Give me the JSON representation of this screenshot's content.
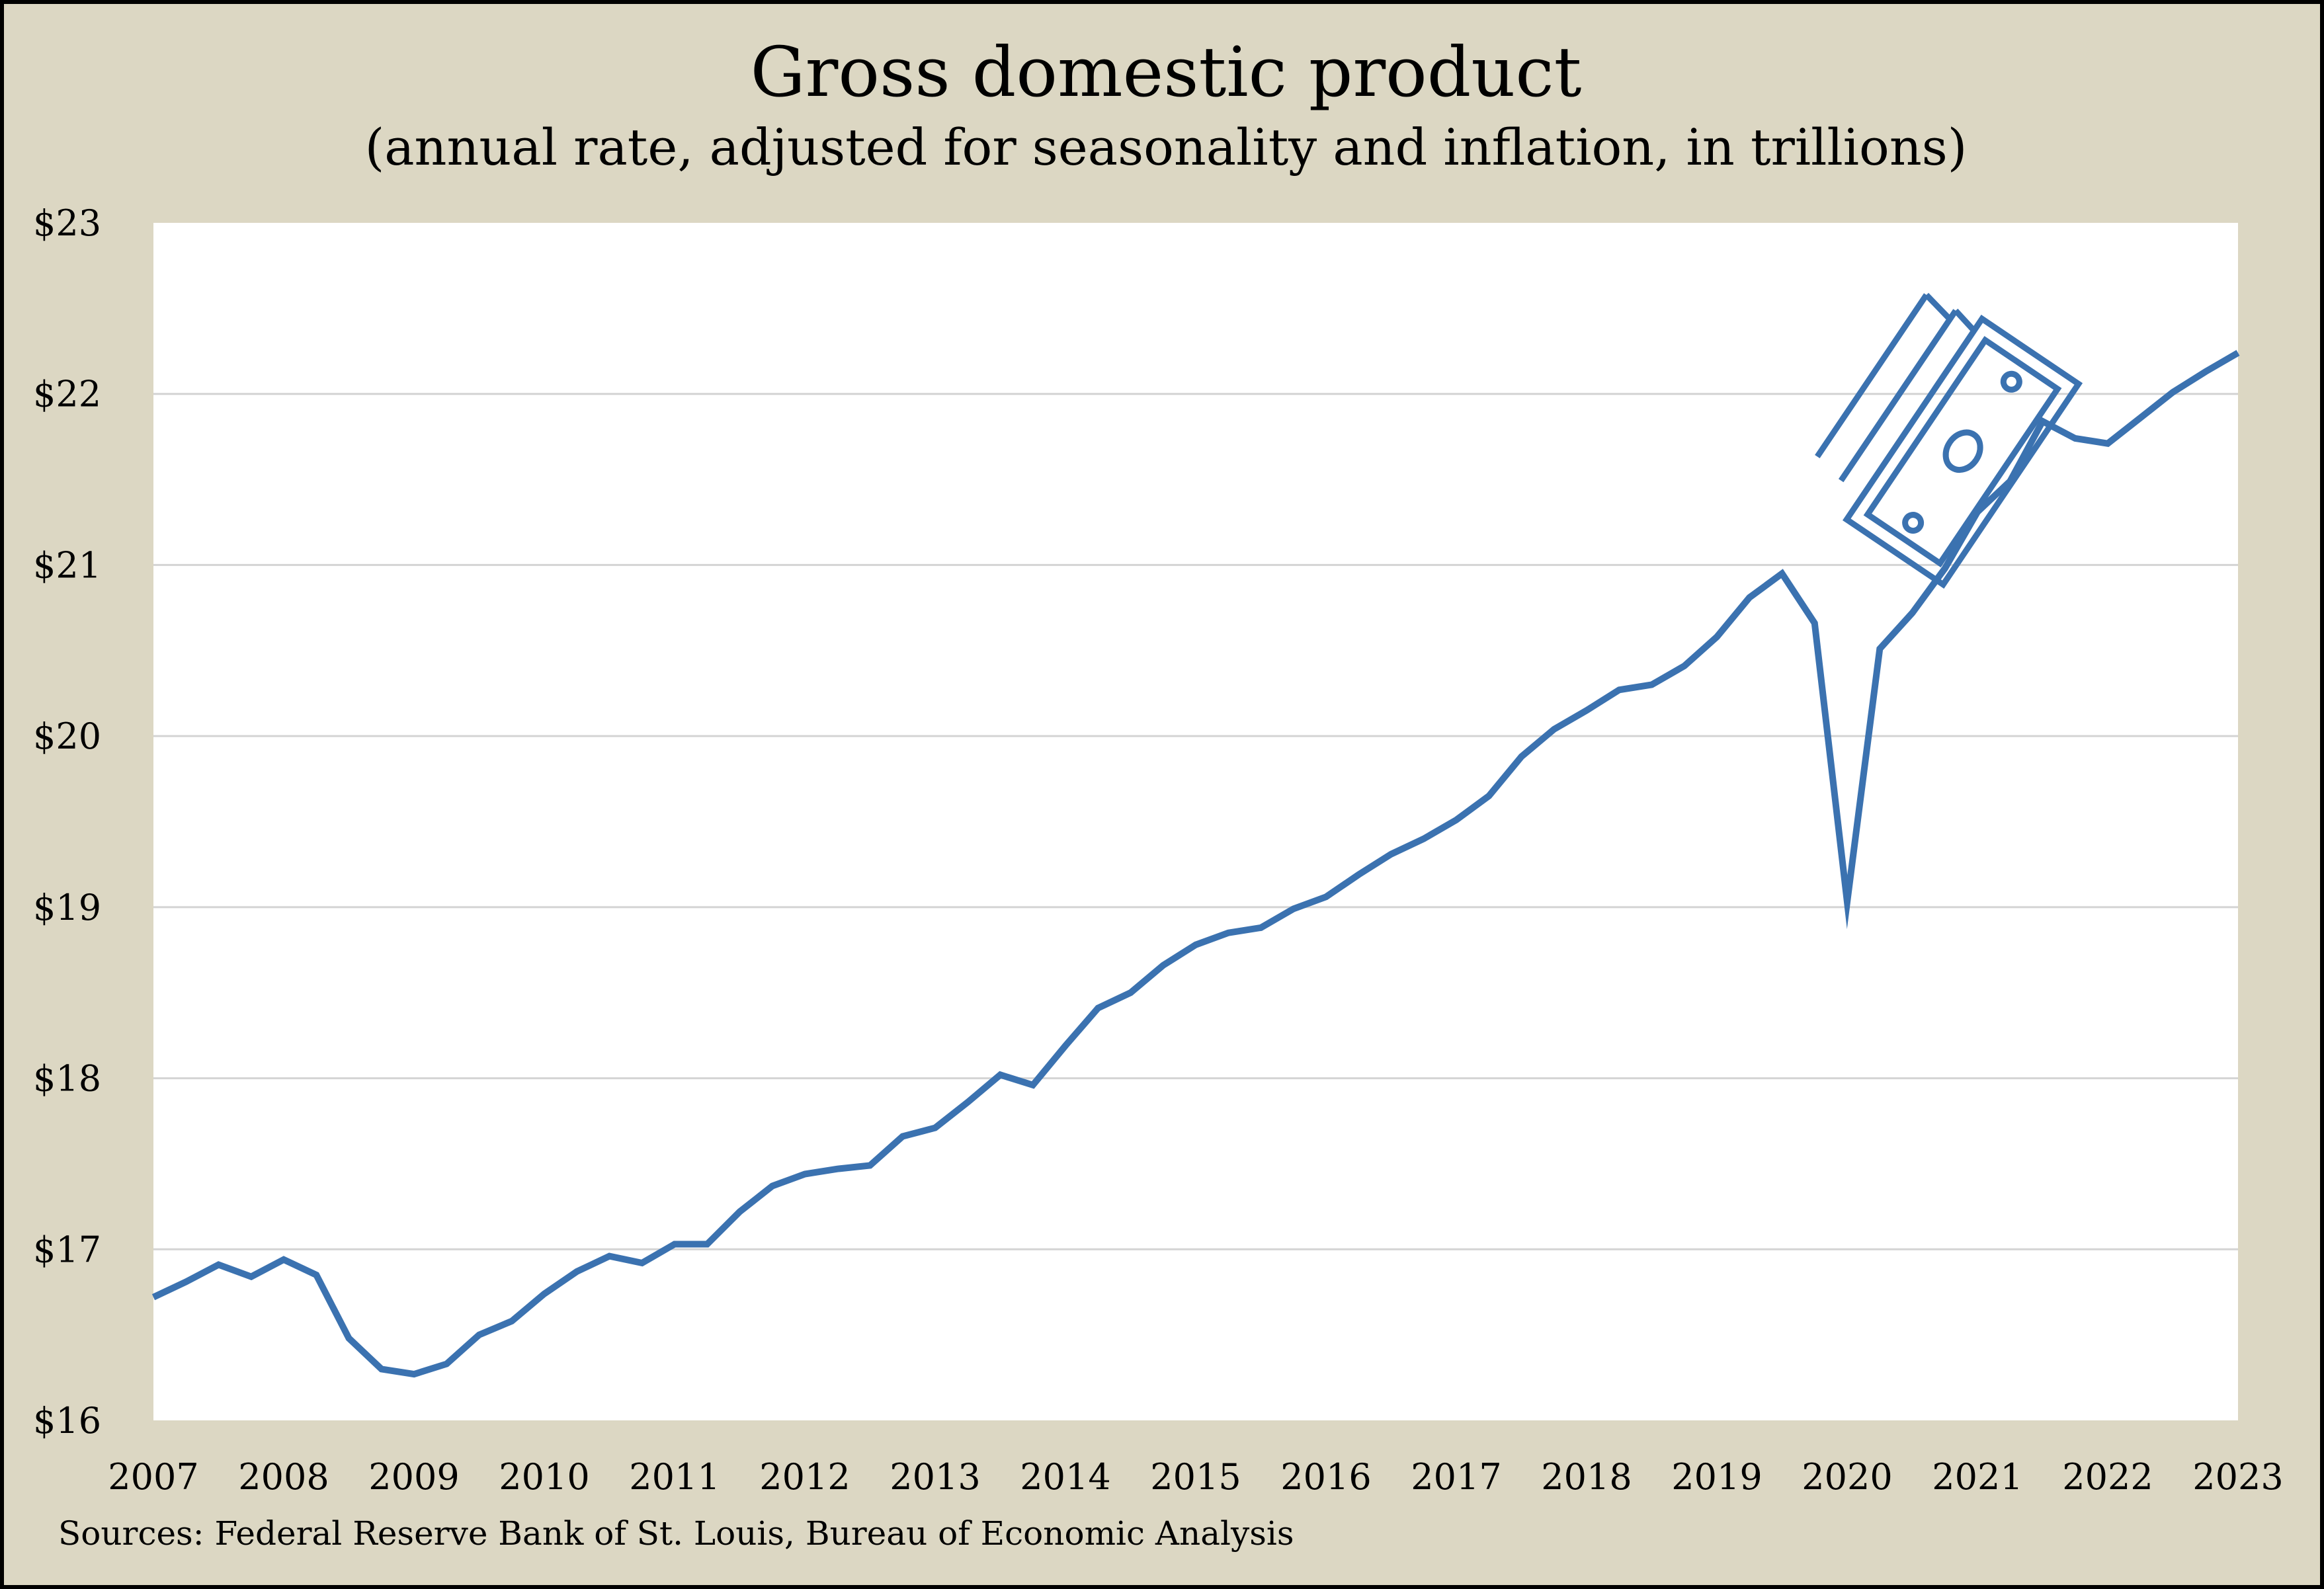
{
  "chart_data": {
    "type": "line",
    "title": "Gross domestic product",
    "subtitle": "(annual rate, adjusted for seasonality and inflation, in trillions)",
    "xlabel": "",
    "ylabel": "",
    "x_tick_labels": [
      "2007",
      "2008",
      "2009",
      "2010",
      "2011",
      "2012",
      "2013",
      "2014",
      "2015",
      "2016",
      "2017",
      "2018",
      "2019",
      "2020",
      "2021",
      "2022",
      "2023"
    ],
    "y_tick_labels": [
      "$16",
      "$17",
      "$18",
      "$19",
      "$20",
      "$21",
      "$22",
      "$23"
    ],
    "ylim": [
      16,
      23
    ],
    "xlim": [
      2007,
      2023
    ],
    "grid": "horizontal",
    "legend": "none",
    "series": [
      {
        "color": "#3b72b0",
        "x": [
          2007.0,
          2007.25,
          2007.5,
          2007.75,
          2008.0,
          2008.25,
          2008.5,
          2008.75,
          2009.0,
          2009.25,
          2009.5,
          2009.75,
          2010.0,
          2010.25,
          2010.5,
          2010.75,
          2011.0,
          2011.25,
          2011.5,
          2011.75,
          2012.0,
          2012.25,
          2012.5,
          2012.75,
          2013.0,
          2013.25,
          2013.5,
          2013.75,
          2014.0,
          2014.25,
          2014.5,
          2014.75,
          2015.0,
          2015.25,
          2015.5,
          2015.75,
          2016.0,
          2016.25,
          2016.5,
          2016.75,
          2017.0,
          2017.25,
          2017.5,
          2017.75,
          2018.0,
          2018.25,
          2018.5,
          2018.75,
          2019.0,
          2019.25,
          2019.5,
          2019.75,
          2020.0,
          2020.25,
          2020.5,
          2020.75,
          2021.0,
          2021.25,
          2021.5,
          2021.75,
          2022.0,
          2022.25,
          2022.5,
          2022.75,
          2023.0
        ],
        "values": [
          16.72,
          16.81,
          16.91,
          16.84,
          16.94,
          16.85,
          16.48,
          16.3,
          16.27,
          16.33,
          16.5,
          16.58,
          16.74,
          16.87,
          16.96,
          16.92,
          17.03,
          17.03,
          17.22,
          17.37,
          17.44,
          17.47,
          17.49,
          17.66,
          17.71,
          17.86,
          18.02,
          17.96,
          18.19,
          18.41,
          18.5,
          18.66,
          18.78,
          18.85,
          18.88,
          18.99,
          19.06,
          19.19,
          19.31,
          19.4,
          19.51,
          19.65,
          19.88,
          20.04,
          20.15,
          20.27,
          20.3,
          20.41,
          20.58,
          20.81,
          20.95,
          20.66,
          19.03,
          20.51,
          20.72,
          20.98,
          21.31,
          21.49,
          21.84,
          21.74,
          21.71,
          21.86,
          22.01,
          22.13,
          22.24
        ]
      }
    ],
    "annotation_icon": "money-bills-icon",
    "source": "Sources: Federal Reserve Bank of St. Louis, Bureau of Economic Analysis"
  },
  "colors": {
    "background": "#dcd7c3",
    "plot_background": "#ffffff",
    "line": "#3b72b0",
    "grid": "#d4d4d4"
  }
}
